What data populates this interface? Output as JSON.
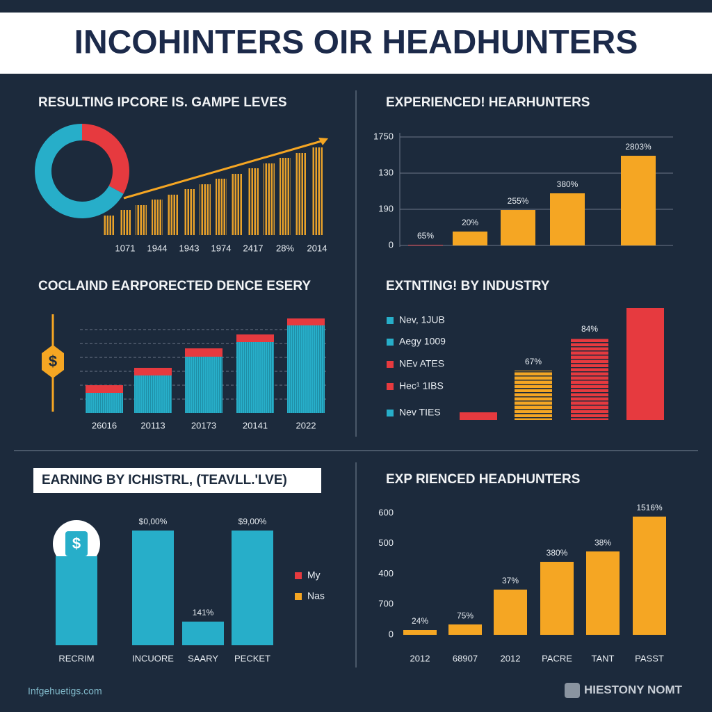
{
  "title": "INCOHINTERS OIR HEADHUNTERS",
  "chart_data": [
    {
      "type": "pie",
      "title": "RESULTING IPCORE IS. GAMPE LEVES",
      "values": [
        33,
        67
      ],
      "colors": [
        "#e63a3f",
        "#27aec9"
      ],
      "donut": true
    },
    {
      "type": "bar",
      "categories": [
        null,
        "1071",
        null,
        "1944",
        null,
        "1943",
        null,
        "1974",
        null,
        "2417",
        null,
        "28%",
        null,
        "2014"
      ],
      "values": [
        28,
        36,
        43,
        51,
        58,
        66,
        73,
        81,
        88,
        96,
        103,
        111,
        118,
        126
      ],
      "color": "#e8a12a",
      "striped": true
    },
    {
      "type": "bar",
      "title": "EXPERIENCED! HEARHUNTERS",
      "categories": [
        null,
        null,
        null,
        null,
        null
      ],
      "values": [
        11,
        224,
        572,
        841,
        1447
      ],
      "value_labels": [
        "65%",
        "20%",
        "255%",
        "380%",
        "2803%"
      ],
      "colors": [
        "#e63a3f",
        "#f5a623",
        "#f5a623",
        "#f5a623",
        "#f5a623"
      ],
      "ylim": [
        0,
        1750
      ],
      "yticks": [
        0,
        {
          "value": 583,
          "label": "190"
        },
        {
          "value": 1167,
          "label": "130"
        },
        1750
      ],
      "grid": true
    },
    {
      "type": "stacked_bar",
      "title": "COCLAIND EARPORECTED DENCE ESERY",
      "categories": [
        "26016",
        "20113",
        "20173",
        "20141",
        "2022"
      ],
      "series": [
        {
          "color": "#27aec9",
          "values": [
            29,
            54,
            81,
            102,
            126
          ]
        },
        {
          "color": "#e63a3f",
          "values": [
            11,
            11,
            12,
            11,
            10
          ]
        }
      ],
      "yticks": [
        20,
        40,
        60,
        80,
        100,
        120
      ],
      "grid": true
    },
    {
      "type": "bar",
      "title": "EXTNTING! BY INDUSTRY",
      "categories": [
        null,
        null,
        null,
        null
      ],
      "values": [
        11,
        71,
        118,
        161
      ],
      "value_labels": [
        null,
        "67%",
        "84%",
        null
      ],
      "colors": [
        "#e63a3f",
        "#f5a623",
        "#e63a3f",
        "#e63a3f"
      ],
      "striped": [
        false,
        true,
        true,
        false
      ],
      "legend": [
        {
          "label": "Nev, 1JUB",
          "color": "#27aec9"
        },
        {
          "label": "Aegy 1009",
          "color": "#27aec9"
        },
        {
          "label": "NEv ATES",
          "color": "#e63a3f"
        },
        {
          "label": "Hec¹ 1IBS",
          "color": "#e63a3f"
        },
        {
          "label": "Nev TIES",
          "color": "#27aec9"
        }
      ]
    },
    {
      "type": "bar",
      "title": "EARNING BY ICHISTRL, (TEAVLL.'LVE)",
      "categories": [
        "RECRIM",
        "INCUORE",
        "SAARY",
        "PECKET"
      ],
      "values": [
        128,
        165,
        34,
        165
      ],
      "value_labels": [
        null,
        "$0,00%",
        "141%",
        "$9,00%"
      ],
      "color": "#27aec9",
      "legend": [
        {
          "label": "My",
          "color": "#e63a3f"
        },
        {
          "label": "Nas",
          "color": "#f5a623"
        }
      ]
    },
    {
      "type": "bar",
      "title": "EXP RIENCED HEADHUNTERS",
      "categories": [
        "2012",
        "68907",
        "2012",
        "PACRE",
        "TANT",
        "PASST"
      ],
      "values": [
        24,
        51,
        223,
        360,
        411,
        583
      ],
      "value_labels": [
        "24%",
        "75%",
        "37%",
        "380%",
        "38%",
        "1516%"
      ],
      "color": "#f5a623",
      "ylim": [
        0,
        600
      ],
      "yticks": [
        0,
        {
          "value": 150,
          "label": "700"
        },
        {
          "value": 300,
          "label": "400"
        },
        {
          "value": 450,
          "label": "500"
        },
        600
      ],
      "grid": false
    }
  ],
  "footer": {
    "left": "Infgehuetigs.com",
    "right": "HIESTONY NOMT"
  }
}
